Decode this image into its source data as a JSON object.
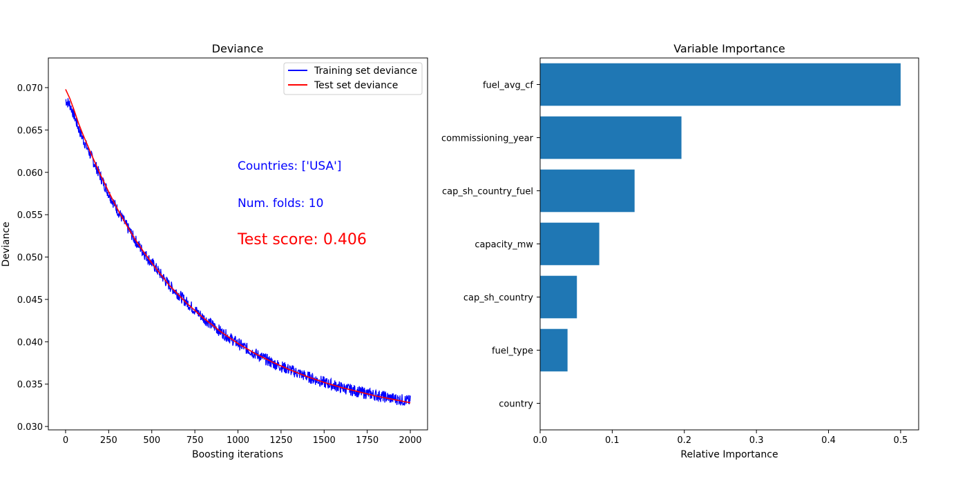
{
  "chart_data": [
    {
      "type": "line",
      "title": "Deviance",
      "xlabel": "Boosting iterations",
      "ylabel": "Deviance",
      "xlim": [
        -100,
        2100
      ],
      "ylim": [
        0.0296,
        0.0735
      ],
      "x_ticks": [
        0,
        250,
        500,
        750,
        1000,
        1250,
        1500,
        1750,
        2000
      ],
      "x_tick_labels": [
        "0",
        "250",
        "500",
        "750",
        "1000",
        "1250",
        "1500",
        "1750",
        "2000"
      ],
      "y_ticks": [
        0.03,
        0.035,
        0.04,
        0.045,
        0.05,
        0.055,
        0.06,
        0.065,
        0.07
      ],
      "y_tick_labels": [
        "0.030",
        "0.035",
        "0.040",
        "0.045",
        "0.050",
        "0.055",
        "0.060",
        "0.065",
        "0.070"
      ],
      "legend_position": "top-right",
      "grid": false,
      "series": [
        {
          "name": "Training set deviance",
          "color": "#0000ff",
          "x": [
            0,
            25,
            50,
            75,
            100,
            150,
            200,
            250,
            300,
            350,
            400,
            450,
            500,
            600,
            700,
            800,
            900,
            1000,
            1100,
            1200,
            1300,
            1400,
            1500,
            1600,
            1700,
            1800,
            1900,
            2000
          ],
          "values": [
            0.0685,
            0.068,
            0.0667,
            0.0652,
            0.064,
            0.0618,
            0.0596,
            0.0575,
            0.0556,
            0.0538,
            0.0521,
            0.0506,
            0.0493,
            0.0467,
            0.0447,
            0.0428,
            0.0412,
            0.0398,
            0.0386,
            0.0375,
            0.0367,
            0.0359,
            0.0352,
            0.0346,
            0.0341,
            0.0337,
            0.0333,
            0.033
          ],
          "noise_amplitude": 0.0007
        },
        {
          "name": "Test set deviance",
          "color": "#ff0000",
          "x": [
            0,
            25,
            50,
            75,
            100,
            150,
            200,
            250,
            300,
            350,
            400,
            450,
            500,
            600,
            700,
            800,
            900,
            1000,
            1100,
            1200,
            1300,
            1400,
            1500,
            1600,
            1700,
            1800,
            1900,
            2000
          ],
          "values": [
            0.0698,
            0.0687,
            0.0673,
            0.0658,
            0.0645,
            0.0621,
            0.0598,
            0.0577,
            0.0557,
            0.0539,
            0.0522,
            0.0507,
            0.0493,
            0.0467,
            0.0446,
            0.0428,
            0.0412,
            0.0398,
            0.0386,
            0.0376,
            0.0367,
            0.0359,
            0.0352,
            0.0346,
            0.0341,
            0.0336,
            0.0332,
            0.0328
          ]
        }
      ],
      "annotations": [
        {
          "text": "Countries: ['USA']",
          "color": "#0000ff"
        },
        {
          "text": "Num. folds: 10",
          "color": "#0000ff"
        },
        {
          "text": "Test score: 0.406",
          "color": "#ff0000"
        }
      ]
    },
    {
      "type": "bar",
      "orientation": "horizontal",
      "title": "Variable Importance",
      "xlabel": "Relative Importance",
      "ylabel": "",
      "xlim": [
        0,
        0.525
      ],
      "x_ticks": [
        0,
        0.1,
        0.2,
        0.3,
        0.4,
        0.5
      ],
      "x_tick_labels": [
        "0.0",
        "0.1",
        "0.2",
        "0.3",
        "0.4",
        "0.5"
      ],
      "bar_color": "#1f77b4",
      "categories": [
        "fuel_avg_cf",
        "commissioning_year",
        "cap_sh_country_fuel",
        "capacity_mw",
        "cap_sh_country",
        "fuel_type",
        "country"
      ],
      "values": [
        0.5,
        0.196,
        0.131,
        0.082,
        0.051,
        0.038,
        0.0
      ]
    }
  ]
}
